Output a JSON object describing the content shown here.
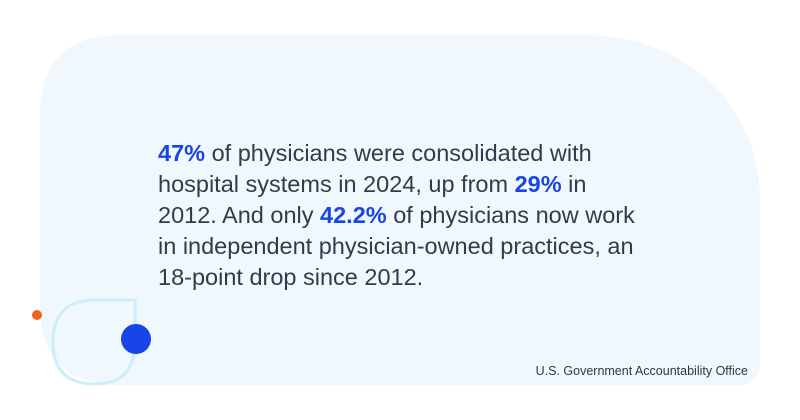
{
  "statement": {
    "lines": [
      [
        {
          "text": "47%",
          "emphasis": true
        },
        {
          "text": " of physicians were consolidated with"
        }
      ],
      [
        {
          "text": "hospital systems in 2024, up from "
        },
        {
          "text": "29%",
          "emphasis": true
        },
        {
          "text": " in"
        }
      ],
      [
        {
          "text": "2012. And only "
        },
        {
          "text": "42.2%",
          "emphasis": true
        },
        {
          "text": " of physicians now work"
        }
      ],
      [
        {
          "text": "in independent physician-owned practices, an"
        }
      ],
      [
        {
          "text": "18-point drop since 2012."
        }
      ]
    ]
  },
  "source": "U.S. Government Accountability Office"
}
